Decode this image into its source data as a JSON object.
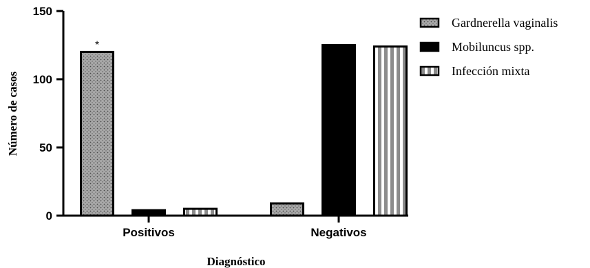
{
  "chart_data": {
    "type": "bar",
    "categories": [
      "Positivos",
      "Negativos"
    ],
    "series": [
      {
        "name": "Gardnerella vaginalis",
        "values": [
          120,
          9
        ],
        "pattern": "dots",
        "color": "#a9a9a9"
      },
      {
        "name": "Mobiluncus spp.",
        "values": [
          4,
          125
        ],
        "pattern": "solid",
        "color": "#000000"
      },
      {
        "name": "Infección mixta",
        "values": [
          5,
          124
        ],
        "pattern": "stripes",
        "color": "#8c8c8c"
      }
    ],
    "xlabel": "Diagnóstico",
    "ylabel": "Número de casos",
    "ylim": [
      0,
      150
    ],
    "yticks": [
      "0",
      "50",
      "100",
      "150"
    ],
    "annotations": [
      {
        "text": "*",
        "category": "Positivos",
        "series": "Gardnerella vaginalis"
      }
    ],
    "legend_position": "top-right",
    "grid": false
  }
}
